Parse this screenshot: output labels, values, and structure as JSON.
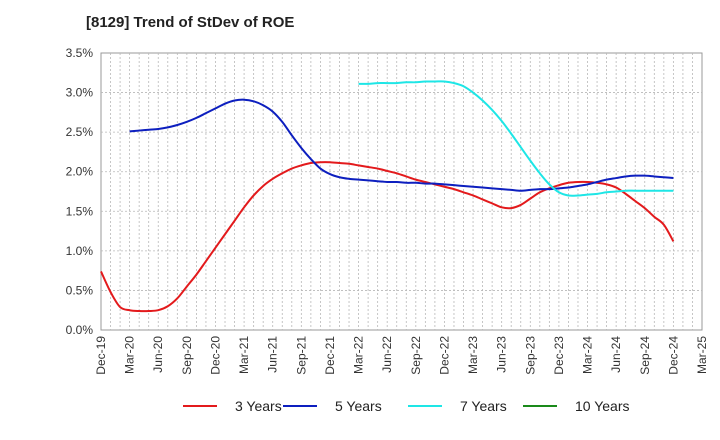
{
  "chart_data": {
    "type": "line",
    "title": "[8129]  Trend of StDev of ROE",
    "xlabel": "",
    "ylabel": "",
    "x_ticks": [
      "Dec-19",
      "Mar-20",
      "Jun-20",
      "Sep-20",
      "Dec-20",
      "Mar-21",
      "Jun-21",
      "Sep-21",
      "Dec-21",
      "Mar-22",
      "Jun-22",
      "Sep-22",
      "Dec-22",
      "Mar-23",
      "Jun-23",
      "Sep-23",
      "Dec-23",
      "Mar-24",
      "Jun-24",
      "Sep-24",
      "Dec-24",
      "Mar-25"
    ],
    "y_ticks": [
      "0.0%",
      "0.5%",
      "1.0%",
      "1.5%",
      "2.0%",
      "2.5%",
      "3.0%",
      "3.5%"
    ],
    "ylim": [
      0,
      3.5
    ],
    "y_unit": "%",
    "grid": true,
    "legend_position": "bottom",
    "series": [
      {
        "name": "3 Years",
        "color": "#e31a1c",
        "points": [
          [
            "Dec-19",
            0.74
          ],
          [
            "Jan-20",
            0.48
          ],
          [
            "Feb-20",
            0.29
          ],
          [
            "Mar-20",
            0.25
          ],
          [
            "Apr-20",
            0.24
          ],
          [
            "May-20",
            0.24
          ],
          [
            "Jun-20",
            0.25
          ],
          [
            "Jul-20",
            0.3
          ],
          [
            "Aug-20",
            0.4
          ],
          [
            "Sep-20",
            0.55
          ],
          [
            "Oct-20",
            0.7
          ],
          [
            "Nov-20",
            0.87
          ],
          [
            "Dec-20",
            1.04
          ],
          [
            "Jan-21",
            1.21
          ],
          [
            "Feb-21",
            1.38
          ],
          [
            "Mar-21",
            1.55
          ],
          [
            "Apr-21",
            1.7
          ],
          [
            "May-21",
            1.82
          ],
          [
            "Jun-21",
            1.91
          ],
          [
            "Jul-21",
            1.98
          ],
          [
            "Aug-21",
            2.04
          ],
          [
            "Sep-21",
            2.08
          ],
          [
            "Oct-21",
            2.11
          ],
          [
            "Nov-21",
            2.12
          ],
          [
            "Dec-21",
            2.12
          ],
          [
            "Jan-22",
            2.11
          ],
          [
            "Feb-22",
            2.1
          ],
          [
            "Mar-22",
            2.08
          ],
          [
            "Apr-22",
            2.06
          ],
          [
            "May-22",
            2.04
          ],
          [
            "Jun-22",
            2.01
          ],
          [
            "Jul-22",
            1.98
          ],
          [
            "Aug-22",
            1.94
          ],
          [
            "Sep-22",
            1.9
          ],
          [
            "Oct-22",
            1.87
          ],
          [
            "Nov-22",
            1.84
          ],
          [
            "Dec-22",
            1.81
          ],
          [
            "Jan-23",
            1.78
          ],
          [
            "Feb-23",
            1.74
          ],
          [
            "Mar-23",
            1.7
          ],
          [
            "Apr-23",
            1.65
          ],
          [
            "May-23",
            1.6
          ],
          [
            "Jun-23",
            1.55
          ],
          [
            "Jul-23",
            1.54
          ],
          [
            "Aug-23",
            1.58
          ],
          [
            "Sep-23",
            1.66
          ],
          [
            "Oct-23",
            1.74
          ],
          [
            "Nov-23",
            1.79
          ],
          [
            "Dec-23",
            1.83
          ],
          [
            "Jan-24",
            1.86
          ],
          [
            "Feb-24",
            1.87
          ],
          [
            "Mar-24",
            1.87
          ],
          [
            "Apr-24",
            1.86
          ],
          [
            "May-24",
            1.84
          ],
          [
            "Jun-24",
            1.8
          ],
          [
            "Jul-24",
            1.72
          ],
          [
            "Aug-24",
            1.63
          ],
          [
            "Sep-24",
            1.54
          ],
          [
            "Oct-24",
            1.43
          ],
          [
            "Nov-24",
            1.33
          ],
          [
            "Dec-24",
            1.12
          ]
        ]
      },
      {
        "name": "5 Years",
        "color": "#0d1fbf",
        "points": [
          [
            "Mar-20",
            2.51
          ],
          [
            "Apr-20",
            2.52
          ],
          [
            "May-20",
            2.53
          ],
          [
            "Jun-20",
            2.54
          ],
          [
            "Jul-20",
            2.56
          ],
          [
            "Aug-20",
            2.59
          ],
          [
            "Sep-20",
            2.63
          ],
          [
            "Oct-20",
            2.68
          ],
          [
            "Nov-20",
            2.74
          ],
          [
            "Dec-20",
            2.8
          ],
          [
            "Jan-21",
            2.86
          ],
          [
            "Feb-21",
            2.9
          ],
          [
            "Mar-21",
            2.91
          ],
          [
            "Apr-21",
            2.89
          ],
          [
            "May-21",
            2.84
          ],
          [
            "Jun-21",
            2.76
          ],
          [
            "Jul-21",
            2.63
          ],
          [
            "Aug-21",
            2.46
          ],
          [
            "Sep-21",
            2.3
          ],
          [
            "Oct-21",
            2.16
          ],
          [
            "Nov-21",
            2.04
          ],
          [
            "Dec-21",
            1.97
          ],
          [
            "Jan-22",
            1.93
          ],
          [
            "Feb-22",
            1.91
          ],
          [
            "Mar-22",
            1.9
          ],
          [
            "Apr-22",
            1.89
          ],
          [
            "May-22",
            1.88
          ],
          [
            "Jun-22",
            1.87
          ],
          [
            "Jul-22",
            1.87
          ],
          [
            "Aug-22",
            1.86
          ],
          [
            "Sep-22",
            1.86
          ],
          [
            "Oct-22",
            1.85
          ],
          [
            "Nov-22",
            1.85
          ],
          [
            "Dec-22",
            1.84
          ],
          [
            "Jan-23",
            1.83
          ],
          [
            "Feb-23",
            1.82
          ],
          [
            "Mar-23",
            1.81
          ],
          [
            "Apr-23",
            1.8
          ],
          [
            "May-23",
            1.79
          ],
          [
            "Jun-23",
            1.78
          ],
          [
            "Jul-23",
            1.77
          ],
          [
            "Aug-23",
            1.76
          ],
          [
            "Sep-23",
            1.77
          ],
          [
            "Oct-23",
            1.78
          ],
          [
            "Nov-23",
            1.78
          ],
          [
            "Dec-23",
            1.79
          ],
          [
            "Jan-24",
            1.8
          ],
          [
            "Feb-24",
            1.82
          ],
          [
            "Mar-24",
            1.84
          ],
          [
            "Apr-24",
            1.87
          ],
          [
            "May-24",
            1.9
          ],
          [
            "Jun-24",
            1.92
          ],
          [
            "Jul-24",
            1.94
          ],
          [
            "Aug-24",
            1.95
          ],
          [
            "Sep-24",
            1.95
          ],
          [
            "Oct-24",
            1.94
          ],
          [
            "Nov-24",
            1.93
          ],
          [
            "Dec-24",
            1.92
          ]
        ]
      },
      {
        "name": "7 Years",
        "color": "#1ee6e6",
        "points": [
          [
            "Mar-22",
            3.11
          ],
          [
            "Apr-22",
            3.11
          ],
          [
            "May-22",
            3.12
          ],
          [
            "Jun-22",
            3.12
          ],
          [
            "Jul-22",
            3.12
          ],
          [
            "Aug-22",
            3.13
          ],
          [
            "Sep-22",
            3.13
          ],
          [
            "Oct-22",
            3.14
          ],
          [
            "Nov-22",
            3.14
          ],
          [
            "Dec-22",
            3.14
          ],
          [
            "Jan-23",
            3.12
          ],
          [
            "Feb-23",
            3.08
          ],
          [
            "Mar-23",
            3.0
          ],
          [
            "Apr-23",
            2.9
          ],
          [
            "May-23",
            2.78
          ],
          [
            "Jun-23",
            2.64
          ],
          [
            "Jul-23",
            2.48
          ],
          [
            "Aug-23",
            2.31
          ],
          [
            "Sep-23",
            2.14
          ],
          [
            "Oct-23",
            1.98
          ],
          [
            "Nov-23",
            1.84
          ],
          [
            "Dec-23",
            1.74
          ],
          [
            "Jan-24",
            1.7
          ],
          [
            "Feb-24",
            1.7
          ],
          [
            "Mar-24",
            1.71
          ],
          [
            "Apr-24",
            1.72
          ],
          [
            "May-24",
            1.74
          ],
          [
            "Jun-24",
            1.75
          ],
          [
            "Jul-24",
            1.76
          ],
          [
            "Aug-24",
            1.76
          ],
          [
            "Sep-24",
            1.76
          ],
          [
            "Oct-24",
            1.76
          ],
          [
            "Nov-24",
            1.76
          ],
          [
            "Dec-24",
            1.76
          ]
        ]
      },
      {
        "name": "10 Years",
        "color": "#1a8a1a",
        "points": []
      }
    ]
  }
}
